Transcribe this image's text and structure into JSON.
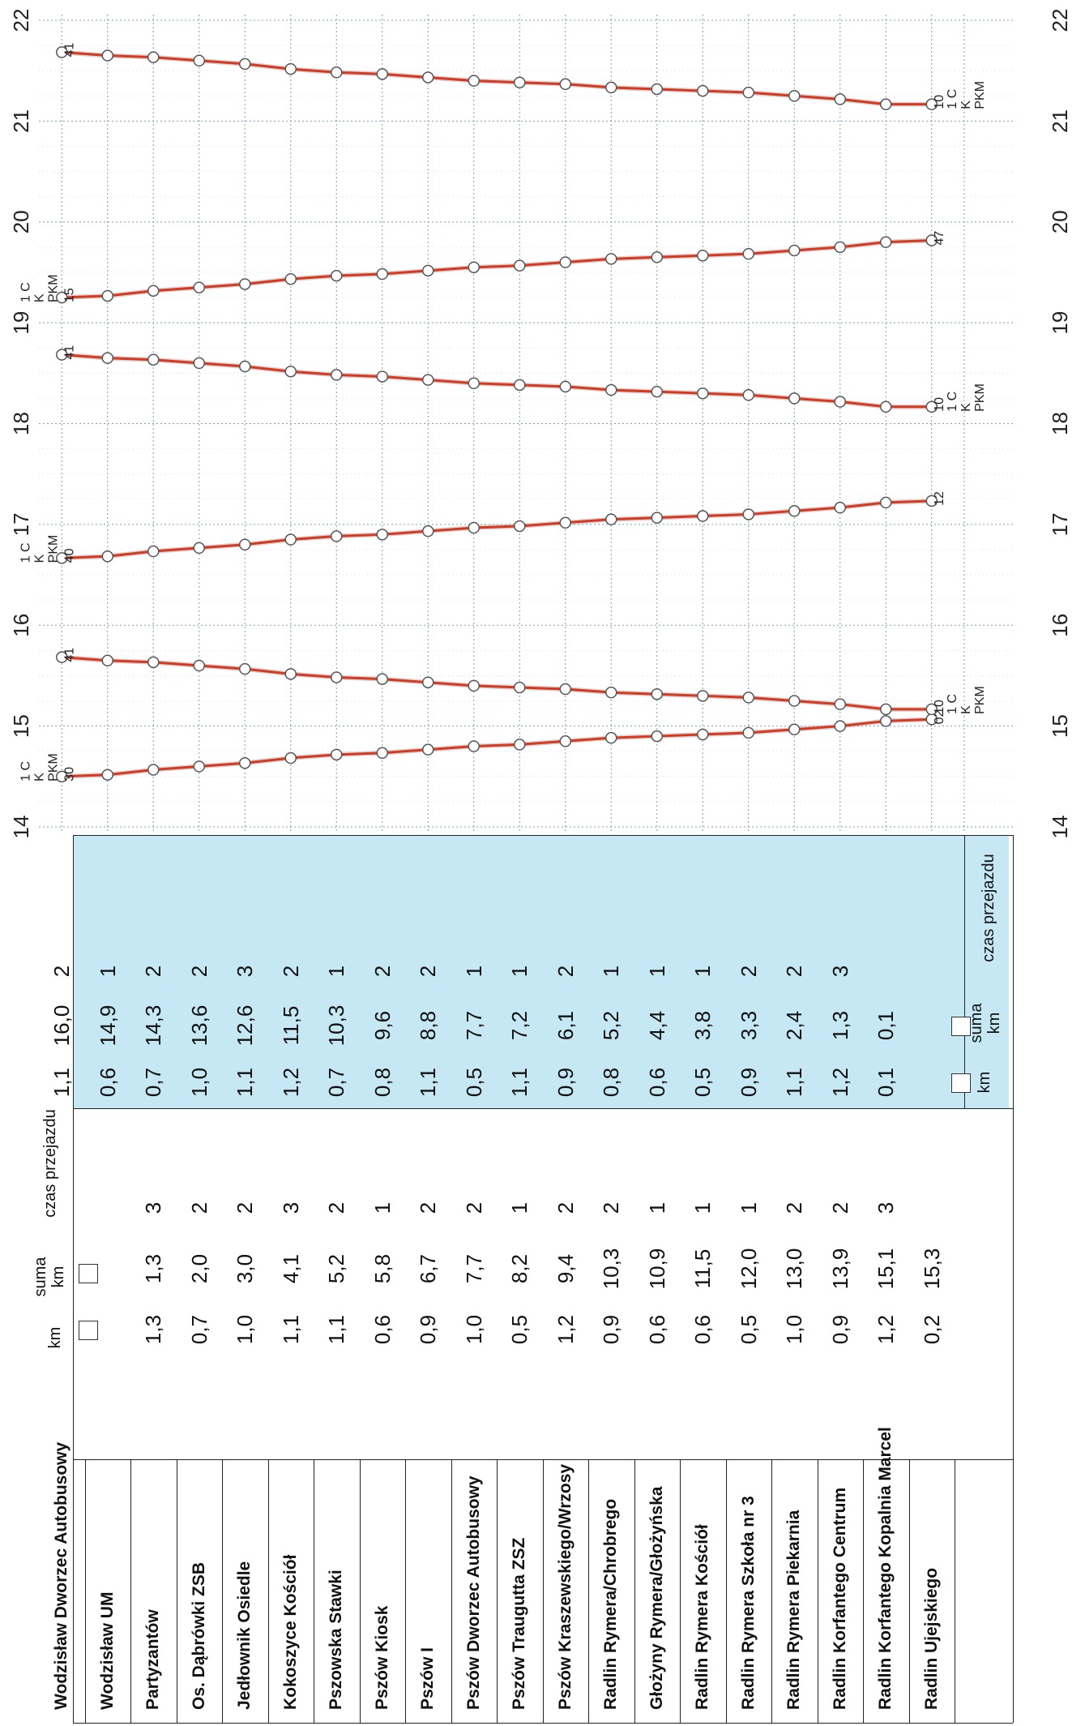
{
  "chart_data": {
    "type": "line",
    "hours": [
      "14",
      "15",
      "16",
      "17",
      "18",
      "19",
      "20",
      "21",
      "22"
    ],
    "stops": [
      "Wodzisław Dworzec Autobusowy",
      "Wodzisław UM",
      "Partyzantów",
      "Os. Dąbrówki ZSB",
      "Jedłownik Osiedle",
      "Kokoszyce Kościół",
      "Pszowska Stawki",
      "Pszów Kiosk",
      "Pszów I",
      "Pszów Dworzec Autobusowy",
      "Pszów Traugutta ZSZ",
      "Pszów Kraszewskiego/Wrzosy",
      "Radlin Rymera/Chrobrego",
      "Głożyny Rymera/Głożyńska",
      "Radlin Rymera Kościół",
      "Radlin Rymera Szkoła nr 3",
      "Radlin Rymera Piekarnia",
      "Radlin Korfantego Centrum",
      "Radlin Korfantego Kopalnia Marcel",
      "Radlin Ujejskiego"
    ],
    "outbound_table": {
      "headers": {
        "km": "km",
        "suma": "suma",
        "suma_unit": "km",
        "czas": "czas przejazdu"
      },
      "km": [
        "",
        "",
        "1,3",
        "0,7",
        "1,0",
        "1,1",
        "1,1",
        "0,6",
        "0,9",
        "1,0",
        "0,5",
        "1,2",
        "0,9",
        "0,6",
        "0,6",
        "0,5",
        "1,0",
        "0,9",
        "1,2",
        "0,2"
      ],
      "suma": [
        "",
        "",
        "1,3",
        "2,0",
        "3,0",
        "4,1",
        "5,2",
        "5,8",
        "6,7",
        "7,7",
        "8,2",
        "9,4",
        "10,3",
        "10,9",
        "11,5",
        "12,0",
        "13,0",
        "13,9",
        "15,1",
        "15,3"
      ],
      "czas": [
        "",
        "",
        "3",
        "2",
        "2",
        "3",
        "2",
        "1",
        "2",
        "2",
        "1",
        "2",
        "2",
        "1",
        "1",
        "1",
        "2",
        "2",
        "3",
        ""
      ]
    },
    "return_table": {
      "headers": {
        "km": "km",
        "suma": "suma",
        "suma_unit": "km",
        "czas": "czas przejazdu"
      },
      "km": [
        "1,1",
        "0,6",
        "0,7",
        "1,0",
        "1,1",
        "1,2",
        "0,7",
        "0,8",
        "1,1",
        "0,5",
        "1,1",
        "0,9",
        "0,8",
        "0,6",
        "0,5",
        "0,9",
        "1,1",
        "1,2",
        "0,1",
        ""
      ],
      "suma": [
        "16,0",
        "14,9",
        "14,3",
        "13,6",
        "12,6",
        "11,5",
        "10,3",
        "9,6",
        "8,8",
        "7,7",
        "7,2",
        "6,1",
        "5,2",
        "4,4",
        "3,8",
        "3,3",
        "2,4",
        "1,3",
        "0,1",
        ""
      ],
      "czas": [
        "2",
        "1",
        "2",
        "2",
        "3",
        "2",
        "1",
        "2",
        "2",
        "1",
        "1",
        "2",
        "1",
        "1",
        "1",
        "2",
        "2",
        "3",
        "",
        ""
      ]
    },
    "series": [
      {
        "type": "outbound",
        "start": "14:30",
        "start_minute": "30",
        "end_minute": "02",
        "labels": [
          "1 C",
          "K",
          "PKM"
        ]
      },
      {
        "type": "return",
        "start": "15:41",
        "start_minute": "41",
        "end_minute": "10",
        "labels": [
          "1 C",
          "K",
          "PKM"
        ]
      },
      {
        "type": "outbound",
        "start": "16:40",
        "start_minute": "40",
        "end_minute": "12",
        "labels": [
          "1 C",
          "K",
          "PKM"
        ]
      },
      {
        "type": "return",
        "start": "18:41",
        "start_minute": "41",
        "end_minute": "10",
        "labels": [
          "1 C",
          "K",
          "PKM"
        ]
      },
      {
        "type": "outbound",
        "start": "19:15",
        "start_minute": "15",
        "end_minute": "47",
        "labels": [
          "1 C",
          "K",
          "PKM"
        ]
      },
      {
        "type": "return",
        "start": "21:41",
        "start_minute": "41",
        "end_minute": "10",
        "labels": [
          "1 C",
          "K",
          "PKM"
        ]
      }
    ],
    "line_color": "#d9381e",
    "grid": true
  }
}
